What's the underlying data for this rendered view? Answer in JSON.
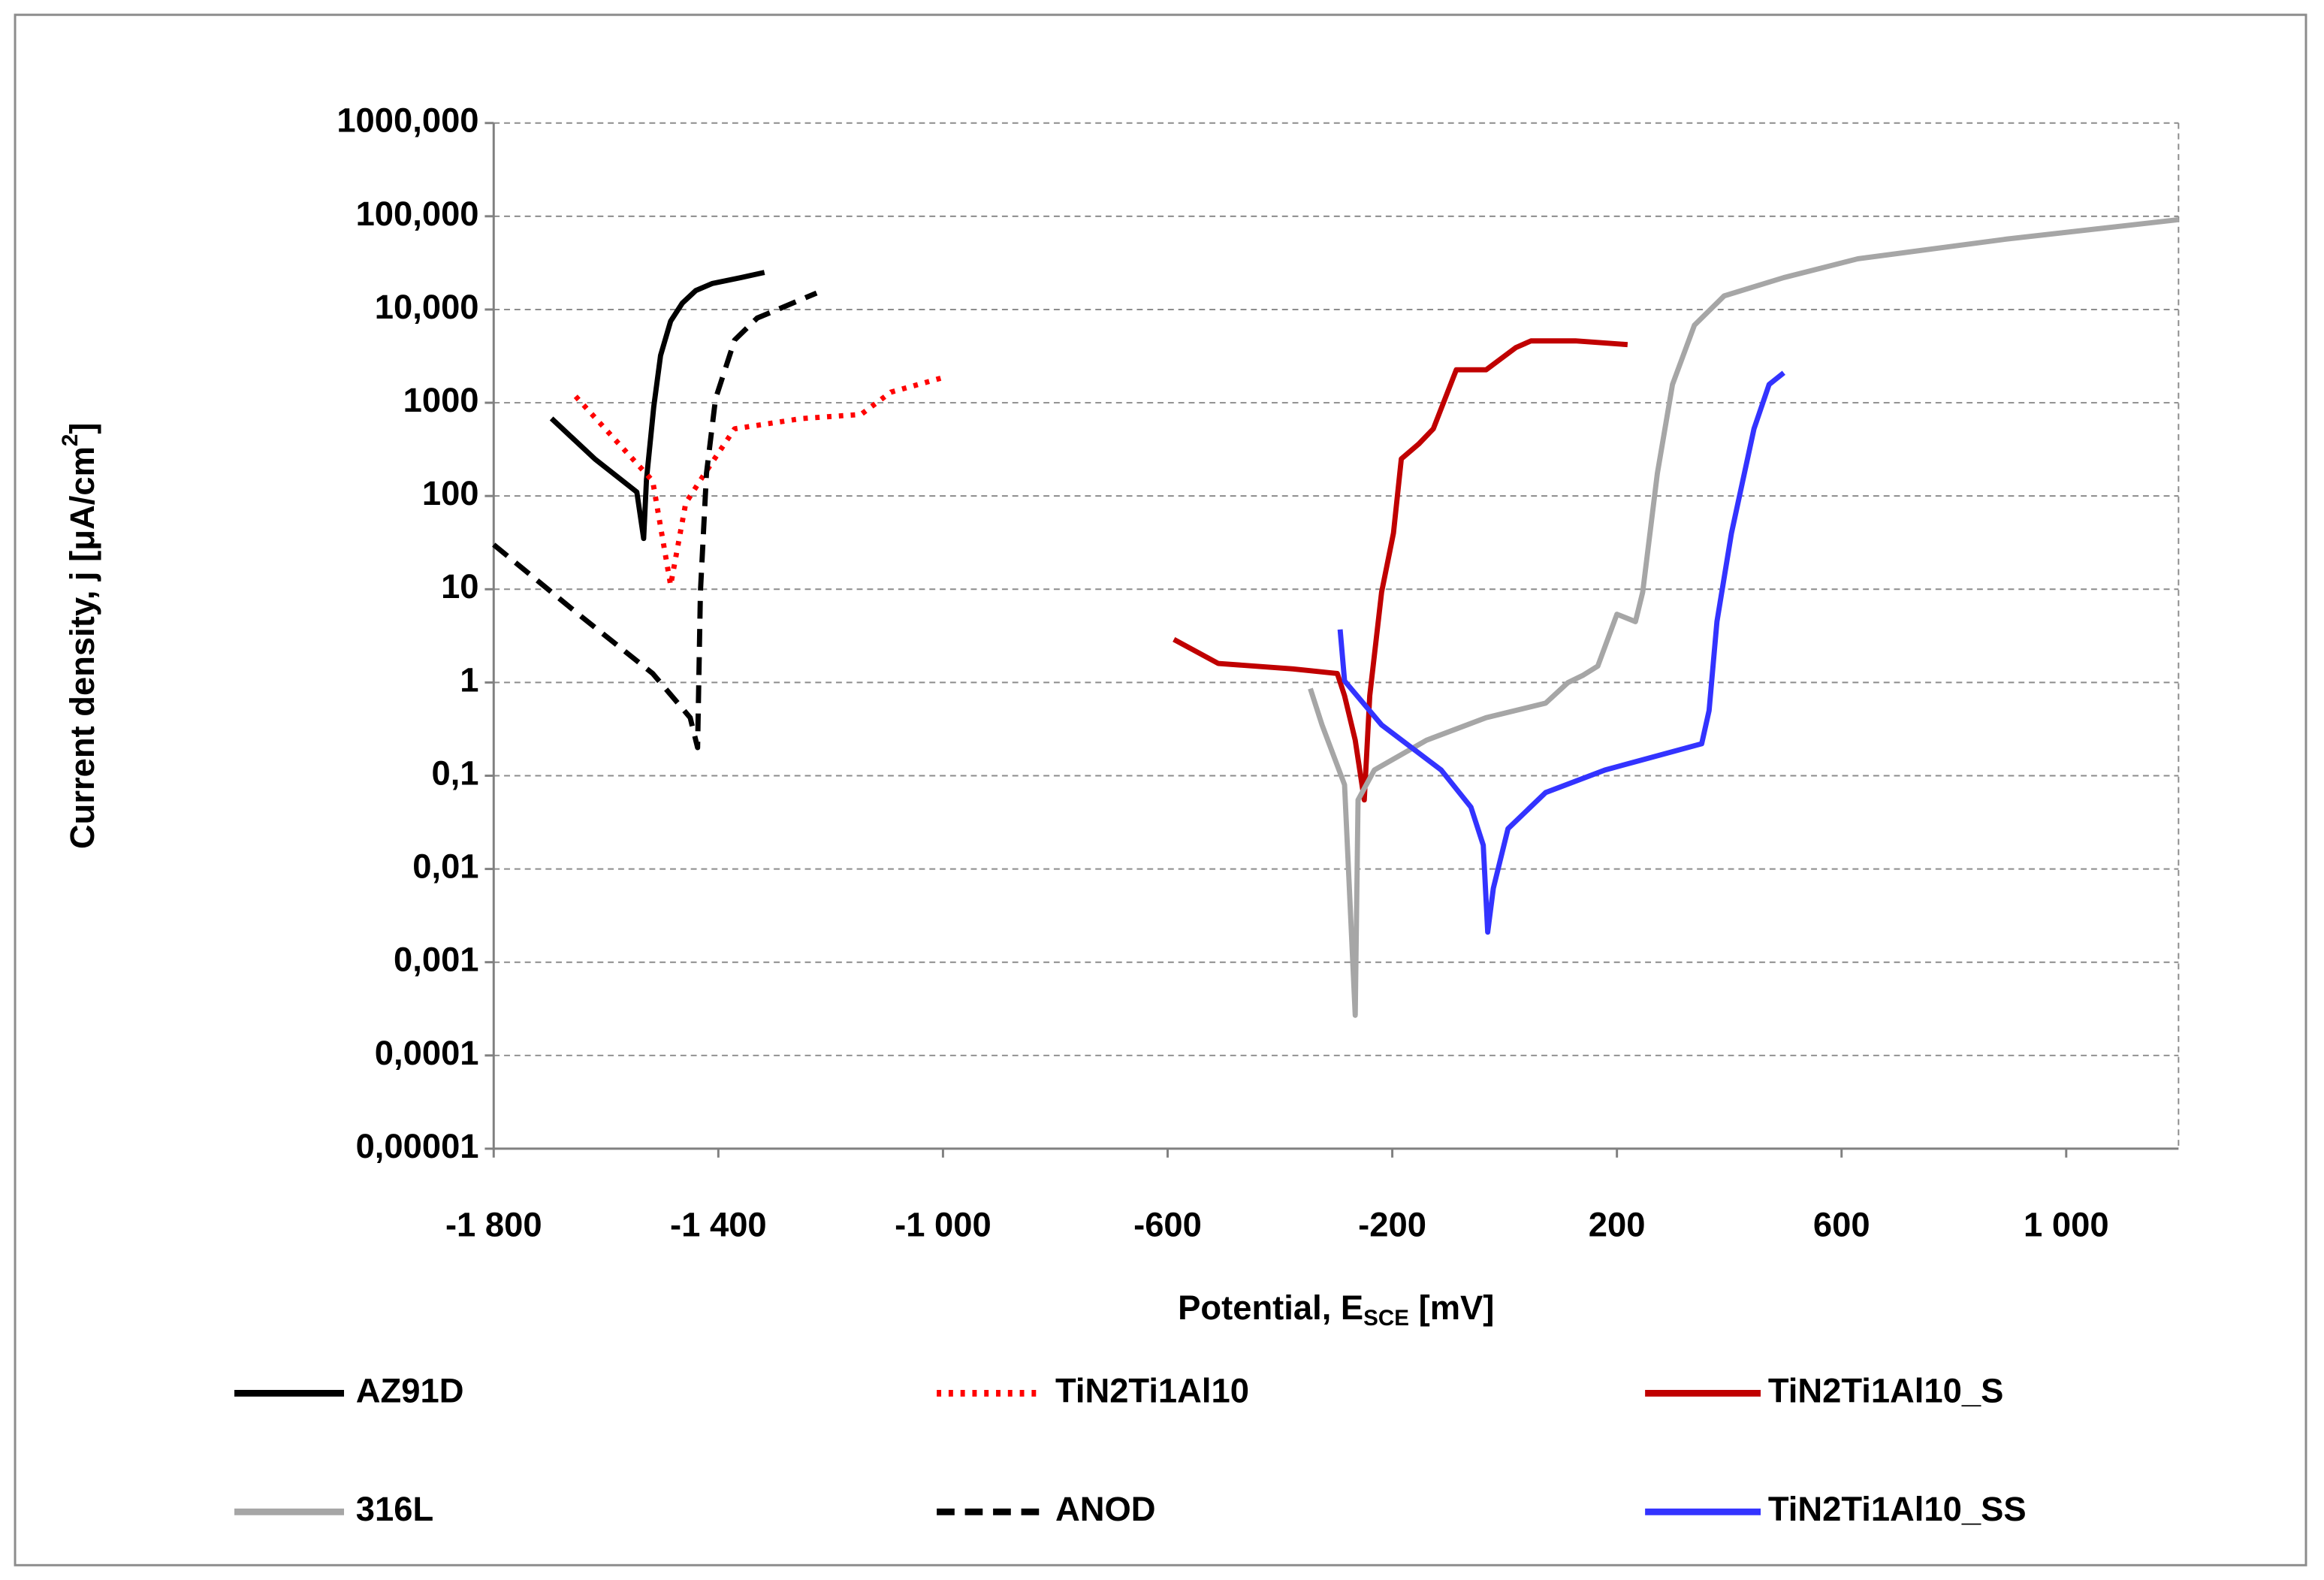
{
  "chart_data": {
    "type": "line",
    "xlabel": {
      "text": "Potential, E",
      "sub": "SCE",
      "after": " [mV]"
    },
    "ylabel": {
      "text": "Current density, j [μA/cm",
      "sup": "2",
      "after": "]"
    },
    "xlim": [
      -1800,
      1200
    ],
    "xticks": [
      {
        "value": -1800,
        "label": "-1 800"
      },
      {
        "value": -1400,
        "label": "-1 400"
      },
      {
        "value": -1000,
        "label": "-1 000"
      },
      -600,
      -200,
      200,
      600,
      {
        "value": 1000,
        "label": "1 000"
      }
    ],
    "ylim": [
      1e-05,
      1000000
    ],
    "ylog": true,
    "yticks": [
      {
        "value": 1000000,
        "label": "1000,000"
      },
      {
        "value": 100000,
        "label": "100,000"
      },
      {
        "value": 10000,
        "label": "10,000"
      },
      1000,
      100,
      10,
      1,
      {
        "value": 0.1,
        "label": "0,1"
      },
      {
        "value": 0.01,
        "label": "0,01"
      },
      {
        "value": 0.001,
        "label": "0,001"
      },
      {
        "value": 0.0001,
        "label": "0,0001"
      },
      {
        "value": 1e-05,
        "label": "0,00001"
      }
    ],
    "grid": true,
    "legend": "bottom",
    "series": [
      {
        "name": "AZ91D",
        "color": "#000000",
        "dash": "solid",
        "x": [
          -1697,
          -1620,
          -1545,
          -1533,
          -1528,
          -1515,
          -1503,
          -1485,
          -1464,
          -1440,
          -1411,
          -1360,
          -1318
        ],
        "values": [
          680,
          250,
          110,
          35,
          150,
          900,
          3200,
          7500,
          11700,
          16000,
          19000,
          22000,
          25000
        ]
      },
      {
        "name": "TiN2Ti1Al10",
        "color": "#ff0000",
        "dash": "dotted",
        "x": [
          -1654,
          -1517,
          -1485,
          -1458,
          -1424,
          -1371,
          -1252,
          -1146,
          -1093,
          -995
        ],
        "values": [
          1170,
          145,
          11,
          84,
          175,
          525,
          676,
          750,
          1300,
          1900
        ]
      },
      {
        "name": "TiN2Ti1Al10_S",
        "color": "#c00000",
        "dash": "solid",
        "x": [
          -589,
          -510,
          -377,
          -298,
          -285,
          -266,
          -250,
          -240,
          -219,
          -198,
          -184,
          -153,
          -127,
          -86,
          -33,
          20,
          47,
          126,
          219
        ],
        "values": [
          2.9,
          1.6,
          1.4,
          1.25,
          0.72,
          0.24,
          0.055,
          0.72,
          9.3,
          40,
          250,
          360,
          525,
          2260,
          2260,
          3900,
          4600,
          4600,
          4200
        ]
      },
      {
        "name": "316L",
        "color": "#a6a6a6",
        "dash": "solid",
        "x": [
          -346,
          -325,
          -285,
          -266,
          -261,
          -232,
          -139,
          -33,
          73,
          113,
          140,
          166,
          200,
          233,
          246,
          272,
          299,
          338,
          391,
          497,
          629,
          894,
          1200
        ],
        "values": [
          0.86,
          0.35,
          0.08,
          0.00027,
          0.055,
          0.115,
          0.24,
          0.42,
          0.6,
          1.0,
          1.2,
          1.5,
          5.4,
          4.5,
          9.3,
          175,
          1570,
          6800,
          14000,
          22000,
          35000,
          57000,
          92000
        ]
      },
      {
        "name": "ANOD",
        "color": "#000000",
        "dash": "dashed",
        "x": [
          -1800,
          -1649,
          -1517,
          -1450,
          -1437,
          -1432,
          -1421,
          -1405,
          -1371,
          -1331,
          -1225
        ],
        "values": [
          30,
          5.4,
          1.25,
          0.42,
          0.2,
          9.3,
          175,
          1100,
          4700,
          8100,
          15000
        ]
      },
      {
        "name": "TiN2Ti1Al10_SS",
        "color": "#3333ff",
        "dash": "solid",
        "x": [
          -293,
          -285,
          -219,
          -113,
          -60,
          -38,
          -30,
          -20,
          6,
          73,
          179,
          351,
          364,
          378,
          404,
          444,
          471,
          497
        ],
        "values": [
          3.7,
          1.04,
          0.35,
          0.115,
          0.046,
          0.018,
          0.0021,
          0.0062,
          0.027,
          0.066,
          0.115,
          0.22,
          0.5,
          4.5,
          40,
          525,
          1570,
          2100
        ]
      }
    ]
  }
}
